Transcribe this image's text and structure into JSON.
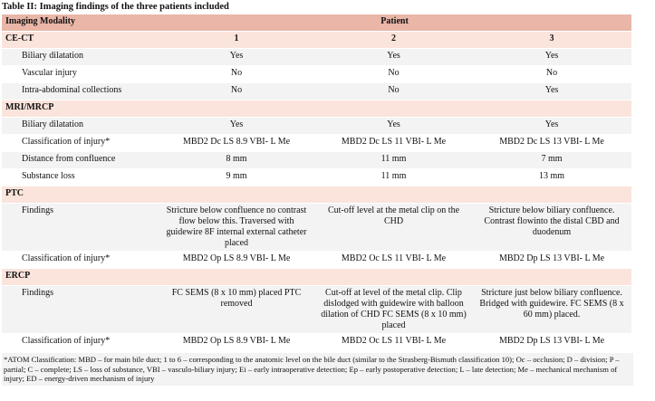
{
  "title": "Table II: Imaging findings of the three patients included",
  "header": {
    "modality": "Imaging Modality",
    "patient": "Patient"
  },
  "sections": [
    {
      "name": "CE-CT",
      "columns": [
        "1",
        "2",
        "3"
      ],
      "rows": [
        {
          "label": "Biliary dilatation",
          "cells": [
            "Yes",
            "Yes",
            "Yes"
          ]
        },
        {
          "label": "Vascular injury",
          "cells": [
            "No",
            "No",
            "No"
          ]
        },
        {
          "label": "Intra-abdominal collections",
          "cells": [
            "No",
            "No",
            "Yes"
          ]
        }
      ]
    },
    {
      "name": "MRI/MRCP",
      "rows": [
        {
          "label": "Biliary dilatation",
          "cells": [
            "Yes",
            "Yes",
            "Yes"
          ]
        },
        {
          "label": "Classification of injury*",
          "cells": [
            "MBD2 Dc LS 8.9 VBI- L Me",
            "MBD2 Dc LS 11 VBI- L Me",
            "MBD2 Dc LS 13 VBI- L Me"
          ]
        },
        {
          "label": "Distance from confluence",
          "cells": [
            "8 mm",
            "11 mm",
            "7 mm"
          ]
        },
        {
          "label": "Substance loss",
          "cells": [
            "9 mm",
            "11 mm",
            "13 mm"
          ]
        }
      ]
    },
    {
      "name": "PTC",
      "rows": [
        {
          "label": "Findings",
          "cells": [
            "Stricture below confluence no contrast flow below this. Traversed with guidewire 8F internal external catheter placed",
            "Cut-off level at the metal clip on the CHD",
            "Stricture below biliary confluence. Contrast flowinto the distal CBD and duodenum"
          ]
        },
        {
          "label": "Classification of injury*",
          "cells": [
            "MBD2 Op LS 8.9 VBI- L Me",
            "MBD2 Oc LS 11 VBI- L Me",
            "MBD2 Dp LS 13 VBI- L Me"
          ]
        }
      ]
    },
    {
      "name": "ERCP",
      "rows": [
        {
          "label": "Findings",
          "cells": [
            "FC SEMS (8 x 10 mm) placed PTC removed",
            "Cut-off at level of the metal clip. Clip dislodged with guidewire with balloon dilation of CHD FC SEMS (8 x 10 mm) placed",
            "Stricture just below biliary confluence. Bridged with guidewire. FC SEMS (8 x 60 mm) placed."
          ]
        },
        {
          "label": "Classification of injury*",
          "cells": [
            "MBD2 Op LS 8.9 VBI- L Me",
            "MBD2 Oc LS 11 VBI- L Me",
            "MBD2 Dp LS 13 VBI- L Me"
          ]
        }
      ]
    }
  ],
  "footnote": "*ATOM Classification:  MBD – for main bile duct; 1 to 6 – corresponding to the anatomic level on the bile duct (similar to the Strasberg-Bismuth classification 10); Oc – occlusion; D – division; P – partial; C – complete; LS – loss of substance, VBI – vasculo-biliary injury; Ei – early intraoperative detection; Ep – early postoperative detection; L – late detection; Me – mechanical mechanism of injury; ED – energy-driven mechanism of injury"
}
